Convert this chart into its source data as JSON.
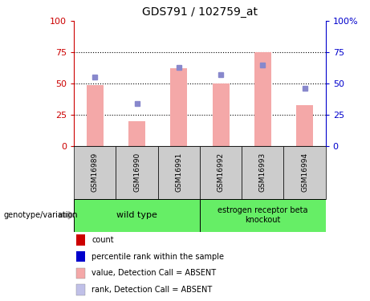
{
  "title": "GDS791 / 102759_at",
  "samples": [
    "GSM16989",
    "GSM16990",
    "GSM16991",
    "GSM16992",
    "GSM16993",
    "GSM16994"
  ],
  "bar_heights": [
    49,
    20,
    62,
    50,
    75,
    33
  ],
  "rank_dots": [
    55,
    34,
    63,
    57,
    65,
    46
  ],
  "bar_color": "#f4a8a8",
  "dot_color": "#8888cc",
  "left_axis_color": "#cc0000",
  "right_axis_color": "#0000cc",
  "ylim": [
    0,
    100
  ],
  "yticks": [
    0,
    25,
    50,
    75,
    100
  ],
  "wt_label": "wild type",
  "ko_label": "estrogen receptor beta\nknockout",
  "group_color": "#66ee66",
  "genotype_label": "genotype/variation",
  "legend_colors": [
    "#cc0000",
    "#0000cc",
    "#f4a8a8",
    "#c0c0e8"
  ],
  "legend_labels": [
    "count",
    "percentile rank within the sample",
    "value, Detection Call = ABSENT",
    "rank, Detection Call = ABSENT"
  ],
  "background_color": "#ffffff",
  "xlabel_area_color": "#cccccc",
  "bar_width": 0.4
}
